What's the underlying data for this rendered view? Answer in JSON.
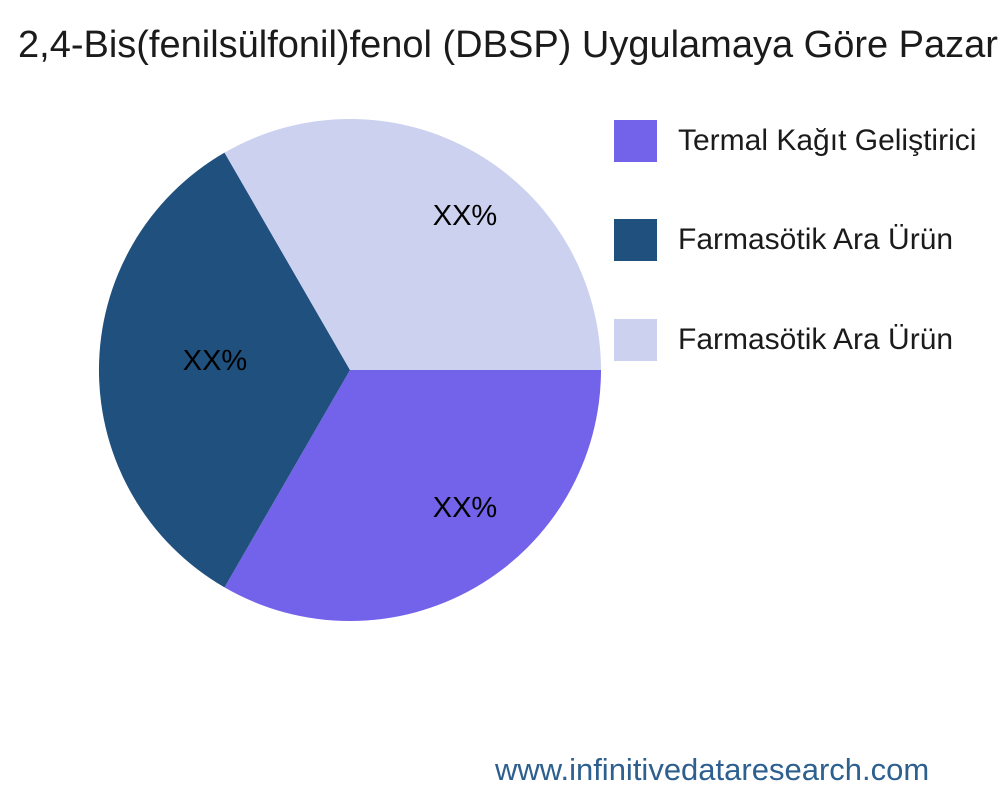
{
  "title": "2,4-Bis(fenilsülfonil)fenol (DBSP) Uygulamaya Göre Pazar",
  "footer": {
    "url": "www.infinitivedataresearch.com",
    "color": "#2D5F8F"
  },
  "chart_data": {
    "type": "pie",
    "title": "2,4-Bis(fenilsülfonil)fenol (DBSP) Uygulamaya Göre Pazar",
    "legend_position": "right",
    "value_label_placeholder": "XX%",
    "direction": "clockwise",
    "start_angle_deg": 0,
    "slices": [
      {
        "name": "Termal Kağıt Geliştirici",
        "value": 33.33,
        "label": "XX%",
        "color": "#7263EA"
      },
      {
        "name": "Farmasötik Ara Ürün",
        "value": 33.33,
        "label": "XX%",
        "color": "#20507E"
      },
      {
        "name": "Farmasötik Ara Ürün",
        "value": 33.33,
        "label": "XX%",
        "color": "#CCD1F0"
      }
    ]
  }
}
